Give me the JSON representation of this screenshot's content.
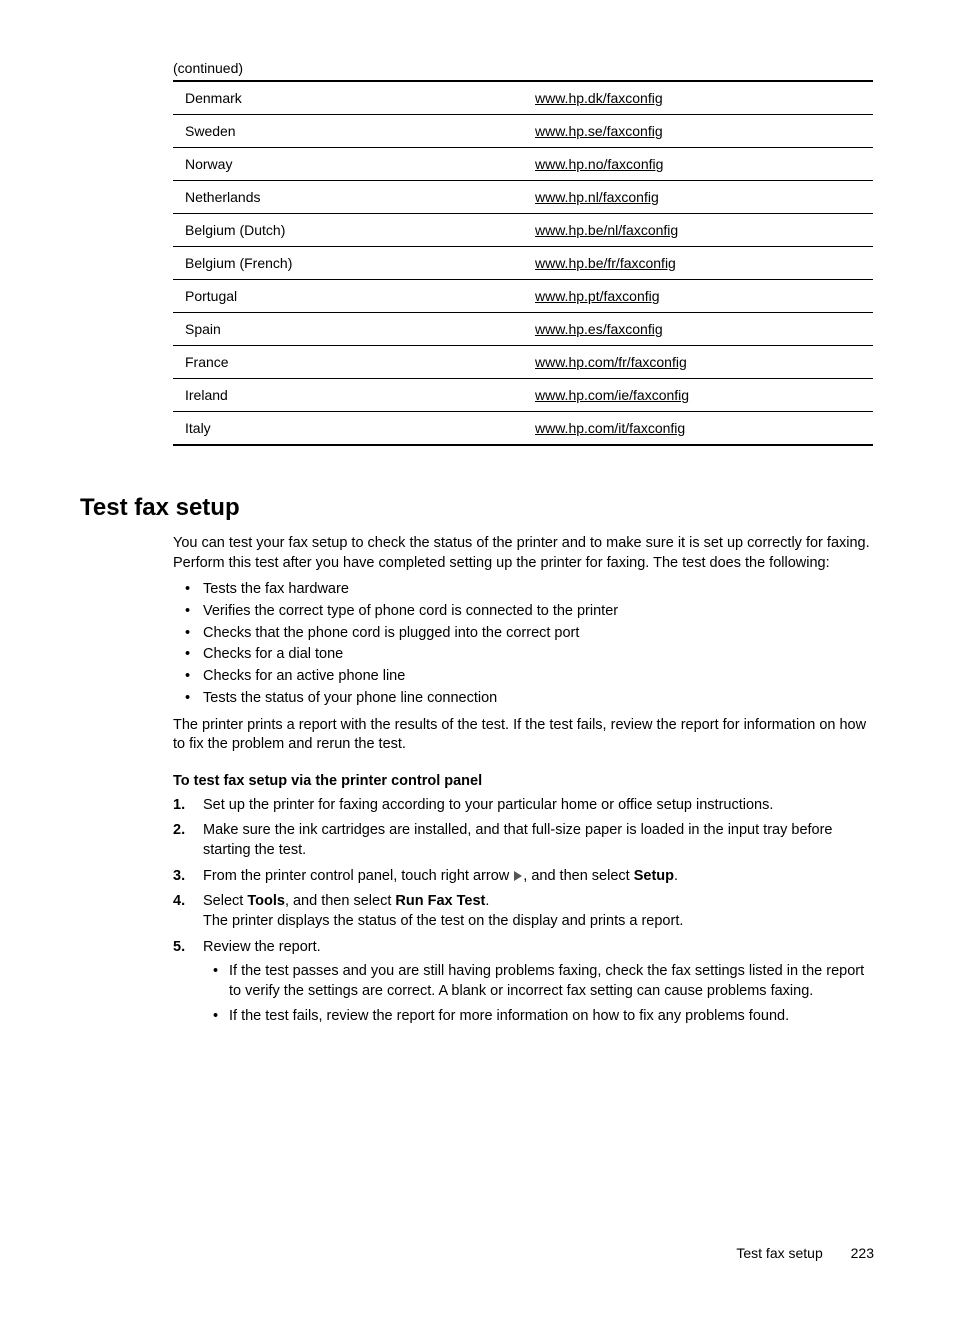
{
  "continued_label": "(continued)",
  "table": {
    "rows": [
      {
        "country": "Denmark",
        "url": "www.hp.dk/faxconfig"
      },
      {
        "country": "Sweden",
        "url": "www.hp.se/faxconfig"
      },
      {
        "country": "Norway",
        "url": "www.hp.no/faxconfig"
      },
      {
        "country": "Netherlands",
        "url": "www.hp.nl/faxconfig"
      },
      {
        "country": "Belgium (Dutch)",
        "url": "www.hp.be/nl/faxconfig"
      },
      {
        "country": "Belgium (French)",
        "url": "www.hp.be/fr/faxconfig"
      },
      {
        "country": "Portugal",
        "url": "www.hp.pt/faxconfig"
      },
      {
        "country": "Spain",
        "url": "www.hp.es/faxconfig"
      },
      {
        "country": "France",
        "url": "www.hp.com/fr/faxconfig"
      },
      {
        "country": "Ireland",
        "url": "www.hp.com/ie/faxconfig"
      },
      {
        "country": "Italy",
        "url": "www.hp.com/it/faxconfig"
      }
    ]
  },
  "section": {
    "heading": "Test fax setup",
    "intro": "You can test your fax setup to check the status of the printer and to make sure it is set up correctly for faxing. Perform this test after you have completed setting up the printer for faxing. The test does the following:",
    "checks": [
      "Tests the fax hardware",
      "Verifies the correct type of phone cord is connected to the printer",
      "Checks that the phone cord is plugged into the correct port",
      "Checks for a dial tone",
      "Checks for an active phone line",
      "Tests the status of your phone line connection"
    ],
    "post_checks": "The printer prints a report with the results of the test. If the test fails, review the report for information on how to fix the problem and rerun the test.",
    "procedure_heading": "To test fax setup via the printer control panel",
    "steps": {
      "s1": "Set up the printer for faxing according to your particular home or office setup instructions.",
      "s2": "Make sure the ink cartridges are installed, and that full-size paper is loaded in the input tray before starting the test.",
      "s3_a": "From the printer control panel, touch right arrow ",
      "s3_b": ", and then select ",
      "s3_setup": "Setup",
      "s3_c": ".",
      "s4_a": "Select ",
      "s4_tools": "Tools",
      "s4_b": ", and then select ",
      "s4_run": "Run Fax Test",
      "s4_c": ".",
      "s4_sub": "The printer displays the status of the test on the display and prints a report.",
      "s5": "Review the report.",
      "s5_bullets": [
        "If the test passes and you are still having problems faxing, check the fax settings listed in the report to verify the settings are correct. A blank or incorrect fax setting can cause problems faxing.",
        "If the test fails, review the report for more information on how to fix any problems found."
      ]
    }
  },
  "footer": {
    "title": "Test fax setup",
    "page": "223"
  }
}
